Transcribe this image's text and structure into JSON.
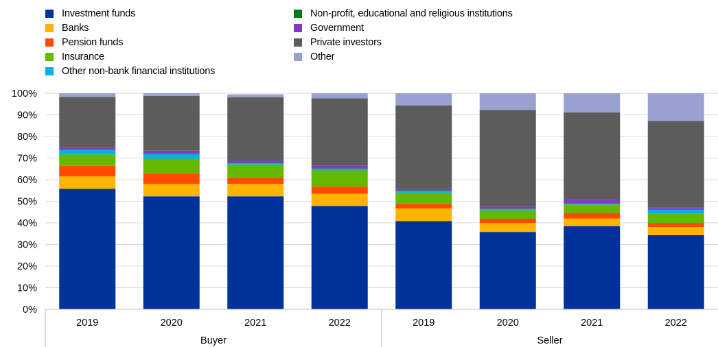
{
  "chart_data": {
    "type": "bar",
    "stacked": true,
    "title": "",
    "xlabel": "",
    "ylabel": "",
    "ylim": [
      0,
      100
    ],
    "yticks": [
      "0%",
      "10%",
      "20%",
      "30%",
      "40%",
      "50%",
      "60%",
      "70%",
      "80%",
      "90%",
      "100%"
    ],
    "groups": [
      "Buyer",
      "Seller"
    ],
    "categories": [
      "2019",
      "2020",
      "2021",
      "2022",
      "2019",
      "2020",
      "2021",
      "2022"
    ],
    "category_groups": [
      "Buyer",
      "Buyer",
      "Buyer",
      "Buyer",
      "Seller",
      "Seller",
      "Seller",
      "Seller"
    ],
    "grid": true,
    "legend_position": "top",
    "series": [
      {
        "name": "Investment funds",
        "color": "#003299",
        "values": [
          55.8,
          52.3,
          52.3,
          47.8,
          40.8,
          35.8,
          38.5,
          34.3
        ]
      },
      {
        "name": "Banks",
        "color": "#FFB400",
        "values": [
          5.7,
          5.7,
          5.7,
          5.7,
          5.9,
          4.1,
          3.5,
          3.8
        ]
      },
      {
        "name": "Pension funds",
        "color": "#FF4B00",
        "values": [
          4.9,
          4.9,
          3.0,
          3.3,
          2.0,
          2.0,
          2.6,
          1.9
        ]
      },
      {
        "name": "Insurance",
        "color": "#65B800",
        "values": [
          5.3,
          6.8,
          6.0,
          7.5,
          5.3,
          3.9,
          3.9,
          4.4
        ]
      },
      {
        "name": "Other non-bank financial institutions",
        "color": "#00B1EA",
        "values": [
          2.0,
          2.2,
          0.6,
          0.7,
          0.9,
          0.6,
          0.5,
          1.8
        ]
      },
      {
        "name": "Non-profit, educational and religious institutions",
        "color": "#007816",
        "values": [
          0.2,
          0.2,
          0.2,
          0.2,
          0.2,
          0.2,
          0.2,
          0.2
        ]
      },
      {
        "name": "Government",
        "color": "#8139C6",
        "values": [
          1.1,
          1.3,
          1.1,
          1.4,
          0.8,
          0.9,
          1.4,
          0.7
        ]
      },
      {
        "name": "Private investors",
        "color": "#5C5C5C",
        "values": [
          23.3,
          25.4,
          29.3,
          31.1,
          38.5,
          44.8,
          40.5,
          40.1
        ]
      },
      {
        "name": "Other",
        "color": "#98A1D0",
        "values": [
          1.7,
          1.2,
          1.3,
          2.3,
          5.6,
          7.7,
          8.9,
          12.8
        ]
      }
    ]
  }
}
